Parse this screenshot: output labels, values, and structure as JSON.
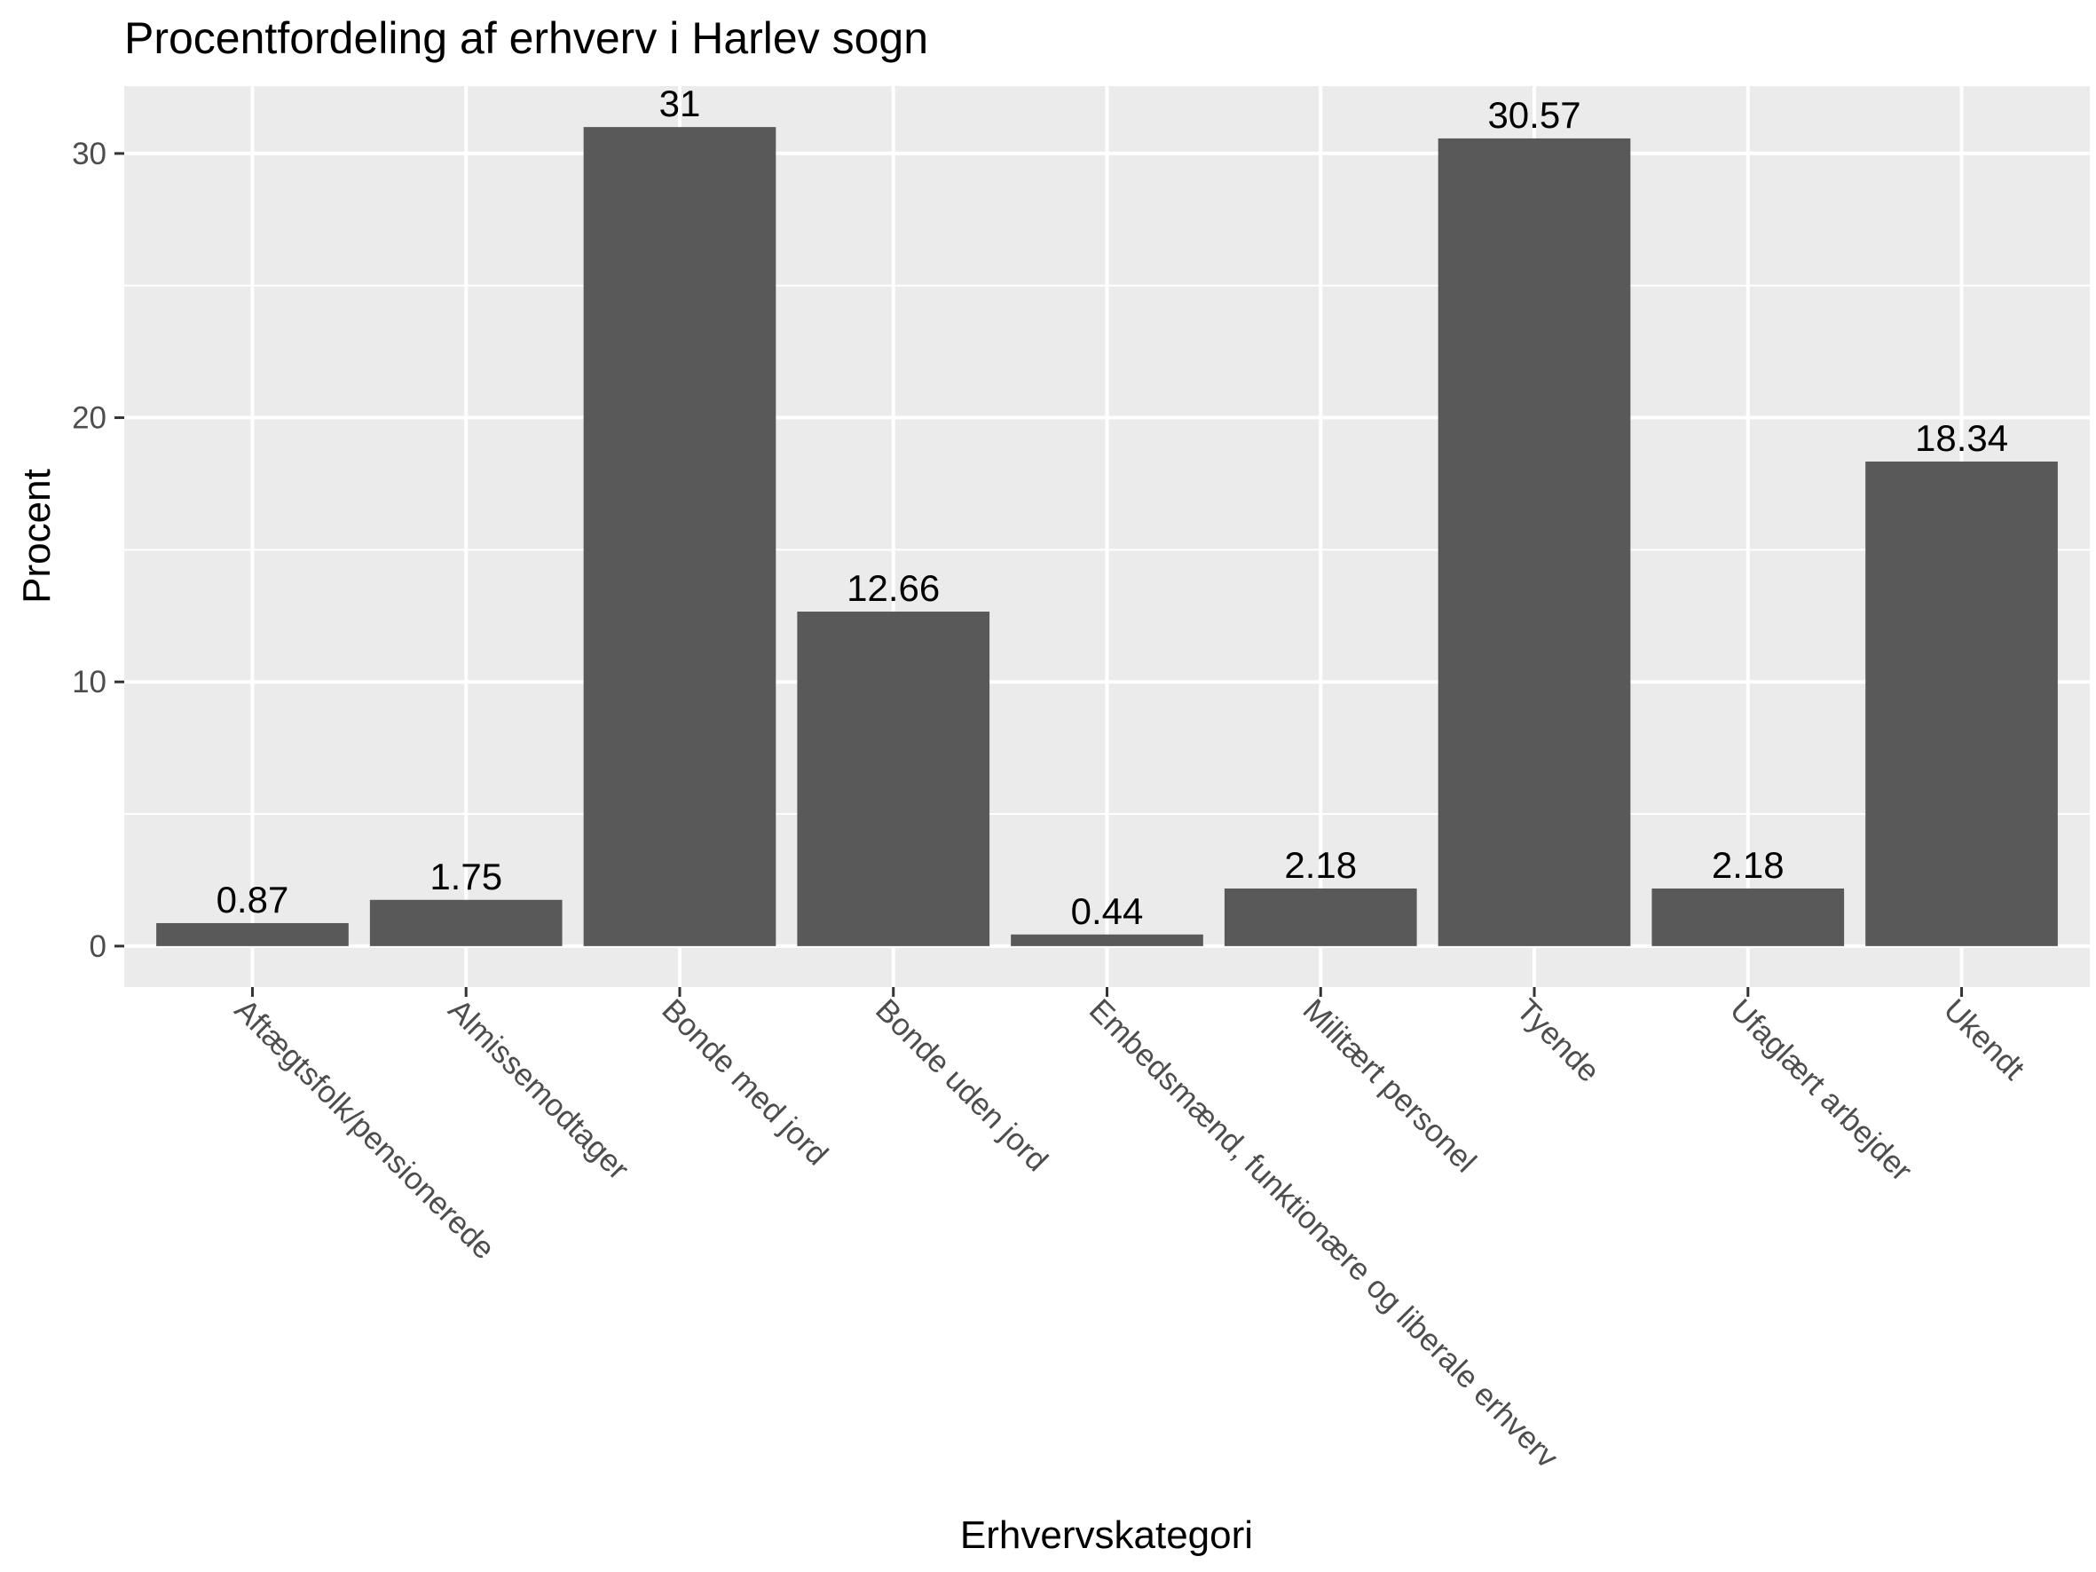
{
  "chart_data": {
    "type": "bar",
    "title": "Procentfordeling af erhverv i Harlev sogn",
    "xlabel": "Erhvervskategori",
    "ylabel": "Procent",
    "categories": [
      "Aftægtsfolk/pensionerede",
      "Almissemodtager",
      "Bonde med jord",
      "Bonde uden jord",
      "Embedsmænd, funktionære og liberale erhverv",
      "Militært personel",
      "Tyende",
      "Ufaglært arbejder",
      "Ukendt"
    ],
    "values": [
      0.87,
      1.75,
      31,
      12.66,
      0.44,
      2.18,
      30.57,
      2.18,
      18.34
    ],
    "data_labels": [
      "0.87",
      "1.75",
      "31",
      "12.66",
      "0.44",
      "2.18",
      "30.57",
      "2.18",
      "18.34"
    ],
    "y_ticks": [
      0,
      10,
      20,
      30
    ],
    "ylim": [
      -1.55,
      32.55
    ],
    "grid": true,
    "legend": "none",
    "colors": {
      "bar": "#595959",
      "panel": "#ebebeb",
      "grid": "#ffffff",
      "tick_text": "#4d4d4d",
      "text": "#000000"
    }
  }
}
